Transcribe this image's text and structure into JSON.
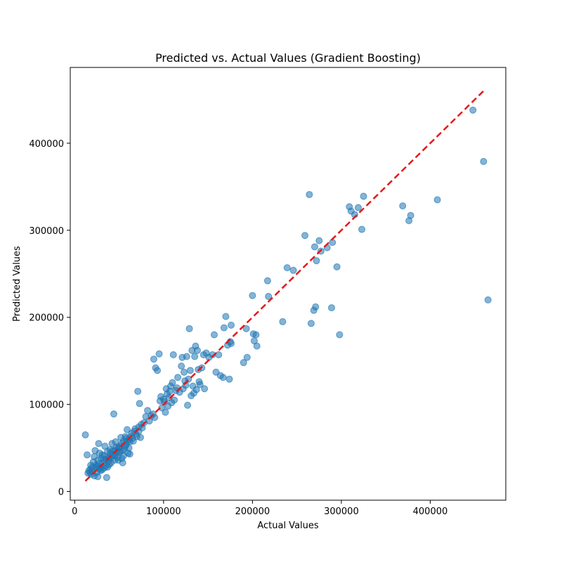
{
  "chart_data": {
    "type": "scatter",
    "title": "Predicted vs. Actual Values (Gradient Boosting)",
    "xlabel": "Actual Values",
    "ylabel": "Predicted Values",
    "xlim": [
      -5000,
      485000
    ],
    "ylim": [
      -10000,
      487000
    ],
    "xticks": [
      0,
      100000,
      200000,
      300000,
      400000
    ],
    "yticks": [
      0,
      100000,
      200000,
      300000,
      400000
    ],
    "xtick_labels": [
      "0",
      "100000",
      "200000",
      "300000",
      "400000"
    ],
    "ytick_labels": [
      "0",
      "100000",
      "200000",
      "300000",
      "400000"
    ],
    "grid": false,
    "point_color": "#1f77b4",
    "point_alpha": 0.55,
    "reference_line": {
      "style": "dashed",
      "color": "#e31a1c",
      "from": [
        12000,
        12000
      ],
      "to": [
        462000,
        462000
      ]
    },
    "series": [
      {
        "points": [
          [
            12000,
            65000
          ],
          [
            14000,
            42000
          ],
          [
            16000,
            24000
          ],
          [
            17000,
            22000
          ],
          [
            18000,
            26000
          ],
          [
            19000,
            20000
          ],
          [
            20000,
            28000
          ],
          [
            21000,
            34000
          ],
          [
            22000,
            18000
          ],
          [
            22000,
            40000
          ],
          [
            23000,
            47000
          ],
          [
            24000,
            30000
          ],
          [
            25000,
            22000
          ],
          [
            26000,
            36000
          ],
          [
            26000,
            17000
          ],
          [
            27000,
            55000
          ],
          [
            28000,
            44000
          ],
          [
            29000,
            28000
          ],
          [
            30000,
            38000
          ],
          [
            31000,
            25000
          ],
          [
            32000,
            33000
          ],
          [
            33000,
            41000
          ],
          [
            34000,
            52000
          ],
          [
            35000,
            29000
          ],
          [
            36000,
            16000
          ],
          [
            37000,
            46000
          ],
          [
            38000,
            35000
          ],
          [
            39000,
            31000
          ],
          [
            40000,
            48000
          ],
          [
            41000,
            39000
          ],
          [
            42000,
            55000
          ],
          [
            43000,
            42000
          ],
          [
            44000,
            89000
          ],
          [
            45000,
            36000
          ],
          [
            46000,
            57000
          ],
          [
            47000,
            44000
          ],
          [
            48000,
            39000
          ],
          [
            49000,
            50000
          ],
          [
            50000,
            45000
          ],
          [
            51000,
            52000
          ],
          [
            52000,
            62000
          ],
          [
            53000,
            38000
          ],
          [
            54000,
            33000
          ],
          [
            55000,
            58000
          ],
          [
            56000,
            49000
          ],
          [
            57000,
            63000
          ],
          [
            58000,
            54000
          ],
          [
            59000,
            71000
          ],
          [
            60000,
            44000
          ],
          [
            61000,
            60000
          ],
          [
            62000,
            43000
          ],
          [
            64000,
            67000
          ],
          [
            66000,
            58000
          ],
          [
            68000,
            72000
          ],
          [
            70000,
            63000
          ],
          [
            71000,
            115000
          ],
          [
            72000,
            74000
          ],
          [
            73000,
            101000
          ],
          [
            74000,
            62000
          ],
          [
            75000,
            77000
          ],
          [
            78000,
            79000
          ],
          [
            80000,
            86000
          ],
          [
            82000,
            93000
          ],
          [
            84000,
            81000
          ],
          [
            86000,
            87000
          ],
          [
            88000,
            89000
          ],
          [
            89000,
            152000
          ],
          [
            90000,
            85000
          ],
          [
            91000,
            142000
          ],
          [
            93000,
            139000
          ],
          [
            95000,
            158000
          ],
          [
            96000,
            104000
          ],
          [
            97000,
            109000
          ],
          [
            98000,
            96000
          ],
          [
            100000,
            106000
          ],
          [
            102000,
            91000
          ],
          [
            103000,
            118000
          ],
          [
            104000,
            112000
          ],
          [
            105000,
            98000
          ],
          [
            106000,
            108000
          ],
          [
            108000,
            121000
          ],
          [
            109000,
            102000
          ],
          [
            110000,
            125000
          ],
          [
            111000,
            157000
          ],
          [
            112000,
            105000
          ],
          [
            114000,
            116000
          ],
          [
            115000,
            119000
          ],
          [
            116000,
            131000
          ],
          [
            118000,
            114000
          ],
          [
            120000,
            144000
          ],
          [
            121000,
            154000
          ],
          [
            122000,
            118000
          ],
          [
            123000,
            137000
          ],
          [
            124000,
            127000
          ],
          [
            125000,
            122000
          ],
          [
            126000,
            155000
          ],
          [
            127000,
            99000
          ],
          [
            128000,
            129000
          ],
          [
            129000,
            187000
          ],
          [
            130000,
            139000
          ],
          [
            131000,
            110000
          ],
          [
            132000,
            162000
          ],
          [
            133000,
            121000
          ],
          [
            134000,
            113000
          ],
          [
            135000,
            155000
          ],
          [
            136000,
            167000
          ],
          [
            137000,
            117000
          ],
          [
            138000,
            162000
          ],
          [
            139000,
            140000
          ],
          [
            140000,
            126000
          ],
          [
            141000,
            123000
          ],
          [
            143000,
            142000
          ],
          [
            145000,
            157000
          ],
          [
            146000,
            118000
          ],
          [
            148000,
            159000
          ],
          [
            151000,
            154000
          ],
          [
            155000,
            157000
          ],
          [
            157000,
            180000
          ],
          [
            159000,
            137000
          ],
          [
            162000,
            157000
          ],
          [
            164000,
            133000
          ],
          [
            167000,
            131000
          ],
          [
            168000,
            188000
          ],
          [
            170000,
            201000
          ],
          [
            172000,
            168000
          ],
          [
            174000,
            129000
          ],
          [
            175000,
            172000
          ],
          [
            176000,
            170000
          ],
          [
            176000,
            191000
          ],
          [
            190000,
            148000
          ],
          [
            193000,
            187000
          ],
          [
            194000,
            154000
          ],
          [
            200000,
            225000
          ],
          [
            201000,
            181000
          ],
          [
            202000,
            173000
          ],
          [
            204000,
            180000
          ],
          [
            205000,
            167000
          ],
          [
            217000,
            242000
          ],
          [
            218000,
            224000
          ],
          [
            234000,
            195000
          ],
          [
            239000,
            257000
          ],
          [
            246000,
            254000
          ],
          [
            259000,
            294000
          ],
          [
            264000,
            341000
          ],
          [
            266000,
            193000
          ],
          [
            269000,
            208000
          ],
          [
            270000,
            281000
          ],
          [
            271000,
            212000
          ],
          [
            272000,
            265000
          ],
          [
            275000,
            288000
          ],
          [
            277000,
            276000
          ],
          [
            284000,
            280000
          ],
          [
            289000,
            211000
          ],
          [
            290000,
            286000
          ],
          [
            295000,
            258000
          ],
          [
            298000,
            180000
          ],
          [
            309000,
            327000
          ],
          [
            311000,
            322000
          ],
          [
            315000,
            318000
          ],
          [
            319000,
            326000
          ],
          [
            323000,
            301000
          ],
          [
            325000,
            339000
          ],
          [
            369000,
            328000
          ],
          [
            376000,
            311000
          ],
          [
            378000,
            317000
          ],
          [
            408000,
            335000
          ],
          [
            448000,
            438000
          ],
          [
            460000,
            379000
          ],
          [
            465000,
            220000
          ],
          [
            15000,
            21000
          ],
          [
            18000,
            30000
          ],
          [
            20000,
            23000
          ],
          [
            24000,
            27000
          ],
          [
            27000,
            32000
          ],
          [
            29000,
            24000
          ],
          [
            31000,
            42000
          ],
          [
            33000,
            27000
          ],
          [
            35000,
            37000
          ],
          [
            37000,
            28000
          ],
          [
            39000,
            40000
          ],
          [
            41000,
            33000
          ],
          [
            43000,
            47000
          ],
          [
            45000,
            41000
          ],
          [
            47000,
            51000
          ],
          [
            49000,
            36000
          ],
          [
            51000,
            46000
          ],
          [
            53000,
            55000
          ],
          [
            55000,
            41000
          ],
          [
            57000,
            52000
          ],
          [
            59000,
            57000
          ],
          [
            61000,
            50000
          ],
          [
            63000,
            63000
          ],
          [
            65000,
            61000
          ],
          [
            67000,
            69000
          ],
          [
            69000,
            66000
          ],
          [
            72000,
            69000
          ],
          [
            76000,
            73000
          ],
          [
            45000,
            47000
          ],
          [
            38000,
            38000
          ],
          [
            33000,
            36000
          ],
          [
            28000,
            26000
          ],
          [
            26000,
            29000
          ],
          [
            40000,
            44000
          ],
          [
            50000,
            50000
          ],
          [
            54000,
            47000
          ],
          [
            58000,
            61000
          ],
          [
            62000,
            57000
          ],
          [
            101000,
            103000
          ],
          [
            107000,
            115000
          ]
        ]
      }
    ]
  }
}
